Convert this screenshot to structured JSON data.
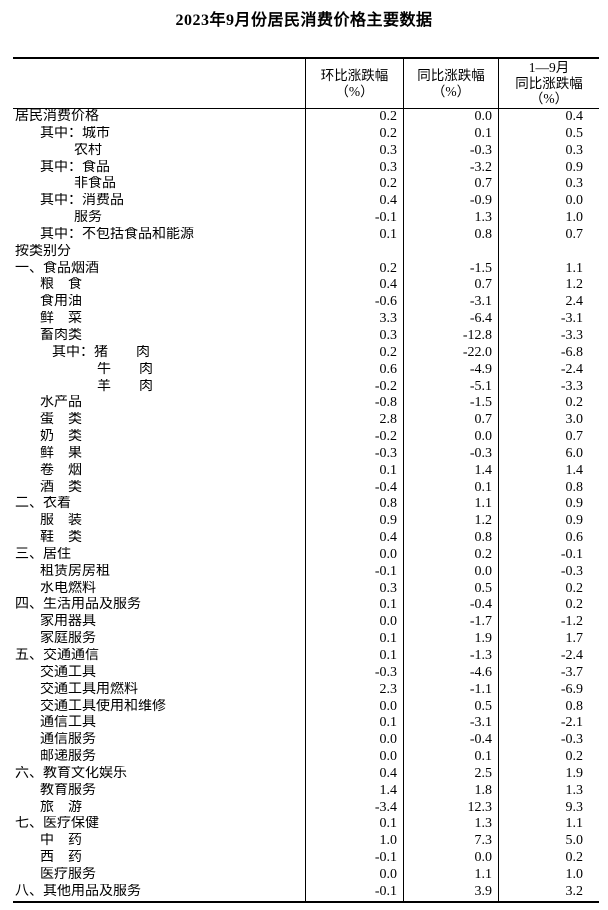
{
  "page": {
    "title": "2023年9月份居民消费价格主要数据"
  },
  "table": {
    "columns": [
      {
        "id": "mom",
        "lines": [
          "环比涨跌幅",
          "（%）"
        ]
      },
      {
        "id": "yoy",
        "lines": [
          "同比涨跌幅",
          "（%）"
        ]
      },
      {
        "id": "ytd",
        "lines": [
          "1—9月",
          "同比涨跌幅",
          "（%）"
        ]
      }
    ],
    "rows": [
      {
        "label": "居民消费价格",
        "indent": 0,
        "mom": "0.2",
        "yoy": "0.0",
        "ytd": "0.4"
      },
      {
        "label": "其中：城市",
        "indent": 1,
        "mom": "0.2",
        "yoy": "0.1",
        "ytd": "0.5"
      },
      {
        "label": "农村",
        "indent": 2,
        "mom": "0.3",
        "yoy": "-0.3",
        "ytd": "0.3"
      },
      {
        "label": "其中：食品",
        "indent": 1,
        "mom": "0.3",
        "yoy": "-3.2",
        "ytd": "0.9"
      },
      {
        "label": "非食品",
        "indent": 2,
        "mom": "0.2",
        "yoy": "0.7",
        "ytd": "0.3"
      },
      {
        "label": "其中：消费品",
        "indent": 1,
        "mom": "0.4",
        "yoy": "-0.9",
        "ytd": "0.0"
      },
      {
        "label": "服务",
        "indent": 2,
        "mom": "-0.1",
        "yoy": "1.3",
        "ytd": "1.0"
      },
      {
        "label": "其中：不包括食品和能源",
        "indent": 1,
        "mom": "0.1",
        "yoy": "0.8",
        "ytd": "0.7"
      },
      {
        "label": "按类别分",
        "indent": 0,
        "mom": "",
        "yoy": "",
        "ytd": ""
      },
      {
        "label": "一、食品烟酒",
        "indent": 0,
        "mom": "0.2",
        "yoy": "-1.5",
        "ytd": "1.1"
      },
      {
        "label": "粮　食",
        "indent": 1,
        "mom": "0.4",
        "yoy": "0.7",
        "ytd": "1.2"
      },
      {
        "label": "食用油",
        "indent": 1,
        "mom": "-0.6",
        "yoy": "-3.1",
        "ytd": "2.4"
      },
      {
        "label": "鲜　菜",
        "indent": 1,
        "mom": "3.3",
        "yoy": "-6.4",
        "ytd": "-3.1"
      },
      {
        "label": "畜肉类",
        "indent": 1,
        "mom": "0.3",
        "yoy": "-12.8",
        "ytd": "-3.3"
      },
      {
        "label": "其中：猪　　肉",
        "indent": 3,
        "mom": "0.2",
        "yoy": "-22.0",
        "ytd": "-6.8"
      },
      {
        "label": "牛　　肉",
        "indent": 4,
        "mom": "0.6",
        "yoy": "-4.9",
        "ytd": "-2.4"
      },
      {
        "label": "羊　　肉",
        "indent": 4,
        "mom": "-0.2",
        "yoy": "-5.1",
        "ytd": "-3.3"
      },
      {
        "label": "水产品",
        "indent": 1,
        "mom": "-0.8",
        "yoy": "-1.5",
        "ytd": "0.2"
      },
      {
        "label": "蛋　类",
        "indent": 1,
        "mom": "2.8",
        "yoy": "0.7",
        "ytd": "3.0"
      },
      {
        "label": "奶　类",
        "indent": 1,
        "mom": "-0.2",
        "yoy": "0.0",
        "ytd": "0.7"
      },
      {
        "label": "鲜　果",
        "indent": 1,
        "mom": "-0.3",
        "yoy": "-0.3",
        "ytd": "6.0"
      },
      {
        "label": "卷　烟",
        "indent": 1,
        "mom": "0.1",
        "yoy": "1.4",
        "ytd": "1.4"
      },
      {
        "label": "酒　类",
        "indent": 1,
        "mom": "-0.4",
        "yoy": "0.1",
        "ytd": "0.8"
      },
      {
        "label": "二、衣着",
        "indent": 0,
        "mom": "0.8",
        "yoy": "1.1",
        "ytd": "0.9"
      },
      {
        "label": "服　装",
        "indent": 1,
        "mom": "0.9",
        "yoy": "1.2",
        "ytd": "0.9"
      },
      {
        "label": "鞋　类",
        "indent": 1,
        "mom": "0.4",
        "yoy": "0.8",
        "ytd": "0.6"
      },
      {
        "label": "三、居住",
        "indent": 0,
        "mom": "0.0",
        "yoy": "0.2",
        "ytd": "-0.1"
      },
      {
        "label": "租赁房房租",
        "indent": 1,
        "mom": "-0.1",
        "yoy": "0.0",
        "ytd": "-0.3"
      },
      {
        "label": "水电燃料",
        "indent": 1,
        "mom": "0.3",
        "yoy": "0.5",
        "ytd": "0.2"
      },
      {
        "label": "四、生活用品及服务",
        "indent": 0,
        "mom": "0.1",
        "yoy": "-0.4",
        "ytd": "0.2"
      },
      {
        "label": "家用器具",
        "indent": 1,
        "mom": "0.0",
        "yoy": "-1.7",
        "ytd": "-1.2"
      },
      {
        "label": "家庭服务",
        "indent": 1,
        "mom": "0.1",
        "yoy": "1.9",
        "ytd": "1.7"
      },
      {
        "label": "五、交通通信",
        "indent": 0,
        "mom": "0.1",
        "yoy": "-1.3",
        "ytd": "-2.4"
      },
      {
        "label": "交通工具",
        "indent": 1,
        "mom": "-0.3",
        "yoy": "-4.6",
        "ytd": "-3.7"
      },
      {
        "label": "交通工具用燃料",
        "indent": 1,
        "mom": "2.3",
        "yoy": "-1.1",
        "ytd": "-6.9"
      },
      {
        "label": "交通工具使用和维修",
        "indent": 1,
        "mom": "0.0",
        "yoy": "0.5",
        "ytd": "0.8"
      },
      {
        "label": "通信工具",
        "indent": 1,
        "mom": "0.1",
        "yoy": "-3.1",
        "ytd": "-2.1"
      },
      {
        "label": "通信服务",
        "indent": 1,
        "mom": "0.0",
        "yoy": "-0.4",
        "ytd": "-0.3"
      },
      {
        "label": "邮递服务",
        "indent": 1,
        "mom": "0.0",
        "yoy": "0.1",
        "ytd": "0.2"
      },
      {
        "label": "六、教育文化娱乐",
        "indent": 0,
        "mom": "0.4",
        "yoy": "2.5",
        "ytd": "1.9"
      },
      {
        "label": "教育服务",
        "indent": 1,
        "mom": "1.4",
        "yoy": "1.8",
        "ytd": "1.3"
      },
      {
        "label": "旅　游",
        "indent": 1,
        "mom": "-3.4",
        "yoy": "12.3",
        "ytd": "9.3"
      },
      {
        "label": "七、医疗保健",
        "indent": 0,
        "mom": "0.1",
        "yoy": "1.3",
        "ytd": "1.1"
      },
      {
        "label": "中　药",
        "indent": 1,
        "mom": "1.0",
        "yoy": "7.3",
        "ytd": "5.0"
      },
      {
        "label": "西　药",
        "indent": 1,
        "mom": "-0.1",
        "yoy": "0.0",
        "ytd": "0.2"
      },
      {
        "label": "医疗服务",
        "indent": 1,
        "mom": "0.0",
        "yoy": "1.1",
        "ytd": "1.0"
      },
      {
        "label": "八、其他用品及服务",
        "indent": 0,
        "mom": "-0.1",
        "yoy": "3.9",
        "ytd": "3.2"
      }
    ]
  },
  "chart_data": {
    "type": "table",
    "title": "2023年9月份居民消费价格主要数据",
    "columns": [
      "环比涨跌幅（%）",
      "同比涨跌幅（%）",
      "1—9月同比涨跌幅（%）"
    ]
  }
}
